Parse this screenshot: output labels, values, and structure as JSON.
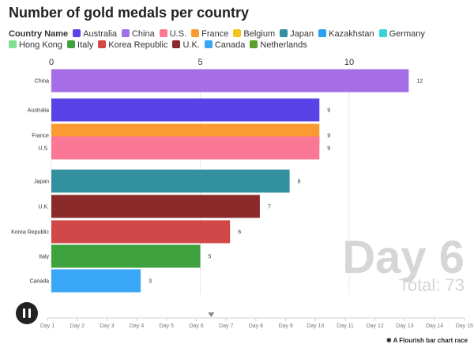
{
  "chart_data": {
    "type": "bar",
    "orientation": "horizontal",
    "title": "Number of gold medals per country",
    "legend_title": "Country Name",
    "legend": [
      {
        "name": "Australia",
        "color": "#5a43e6"
      },
      {
        "name": "China",
        "color": "#a56ee6"
      },
      {
        "name": "U.S.",
        "color": "#fa7896"
      },
      {
        "name": "France",
        "color": "#fa9b32"
      },
      {
        "name": "Belgium",
        "color": "#f5c31e"
      },
      {
        "name": "Japan",
        "color": "#33909e"
      },
      {
        "name": "Kazakhstan",
        "color": "#2aa0f5"
      },
      {
        "name": "Germany",
        "color": "#3ad2d2"
      },
      {
        "name": "Hong Kong",
        "color": "#80e090"
      },
      {
        "name": "Italy",
        "color": "#3ea33e"
      },
      {
        "name": "Korea Republic",
        "color": "#d04848"
      },
      {
        "name": "U.K.",
        "color": "#8a2a2a"
      },
      {
        "name": "Canada",
        "color": "#3aa6f7"
      },
      {
        "name": "Netherlands",
        "color": "#5aa02a"
      }
    ],
    "categories": [
      "China",
      "Australia",
      "France",
      "U.S.",
      "Japan",
      "U.K.",
      "Korea Republic",
      "Italy",
      "Canada"
    ],
    "values": [
      12,
      9,
      9,
      9,
      8,
      7,
      6,
      5,
      3
    ],
    "colors": [
      "#a56ee6",
      "#5a43e6",
      "#fa9b32",
      "#fa7896",
      "#33909e",
      "#8a2a2a",
      "#d04848",
      "#3ea33e",
      "#3aa6f7"
    ],
    "x_ticks": [
      0,
      5,
      10
    ],
    "xlim": [
      0,
      14
    ],
    "grid": true,
    "day_label": "Day 6",
    "total_label": "Total: 73",
    "timeline": [
      "Day 1",
      "Day 2",
      "Day 3",
      "Day 4",
      "Day 5",
      "Day 6",
      "Day 7",
      "Day 8",
      "Day 9",
      "Day 10",
      "Day 11",
      "Day 12",
      "Day 13",
      "Day 14",
      "Day 15"
    ],
    "timeline_position_day": 6.5
  },
  "credit": "A Flourish bar chart race"
}
